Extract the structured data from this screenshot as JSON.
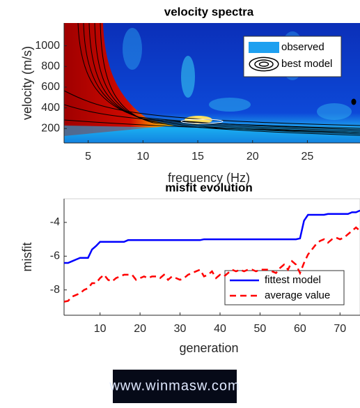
{
  "chart_data": [
    {
      "type": "heatmap",
      "title": "velocity spectra",
      "xlabel": "frequency (Hz)",
      "ylabel": "velocity (m/s)",
      "xlim": [
        2.8,
        29.8
      ],
      "xticks": [
        5,
        10,
        15,
        20,
        25
      ],
      "ylim": [
        60,
        1220
      ],
      "yticks": [
        200,
        400,
        600,
        800,
        1000
      ],
      "series": [
        {
          "name": "observed",
          "color": "#1ea0f0"
        },
        {
          "name": "best model",
          "color": "#000000"
        }
      ]
    },
    {
      "type": "line",
      "title": "misfit evolution",
      "xlabel": "generation",
      "ylabel": "misfit",
      "xlim": [
        1,
        75
      ],
      "xticks": [
        10,
        20,
        30,
        40,
        50,
        60,
        70
      ],
      "ylim": [
        -9.5,
        -2.6
      ],
      "yticks": [
        -8,
        -6,
        -4
      ],
      "x": [
        1,
        2,
        3,
        4,
        5,
        6,
        7,
        8,
        9,
        10,
        11,
        12,
        13,
        14,
        15,
        16,
        17,
        18,
        19,
        20,
        21,
        22,
        23,
        24,
        25,
        26,
        27,
        28,
        29,
        30,
        31,
        32,
        33,
        34,
        35,
        36,
        37,
        38,
        39,
        40,
        41,
        42,
        43,
        44,
        45,
        46,
        47,
        48,
        49,
        50,
        51,
        52,
        53,
        54,
        55,
        56,
        57,
        58,
        59,
        60,
        61,
        62,
        63,
        64,
        65,
        66,
        67,
        68,
        69,
        70,
        71,
        72,
        73,
        74,
        75
      ],
      "series": [
        {
          "name": "fittest model",
          "color": "#0000ff",
          "dash": false,
          "values": [
            -6.4,
            -6.4,
            -6.3,
            -6.2,
            -6.1,
            -6.1,
            -6.1,
            -5.6,
            -5.4,
            -5.15,
            -5.15,
            -5.15,
            -5.15,
            -5.15,
            -5.15,
            -5.15,
            -5.05,
            -5.05,
            -5.05,
            -5.05,
            -5.05,
            -5.05,
            -5.05,
            -5.05,
            -5.05,
            -5.05,
            -5.05,
            -5.05,
            -5.05,
            -5.05,
            -5.05,
            -5.05,
            -5.05,
            -5.05,
            -5.05,
            -5.0,
            -5.0,
            -5.0,
            -5.0,
            -5.0,
            -5.0,
            -5.0,
            -5.0,
            -5.0,
            -5.0,
            -5.0,
            -5.0,
            -5.0,
            -5.0,
            -5.0,
            -5.0,
            -5.0,
            -5.0,
            -5.0,
            -5.0,
            -5.0,
            -5.0,
            -5.0,
            -5.0,
            -4.95,
            -3.9,
            -3.55,
            -3.55,
            -3.55,
            -3.55,
            -3.55,
            -3.5,
            -3.5,
            -3.5,
            -3.5,
            -3.5,
            -3.5,
            -3.4,
            -3.4,
            -3.3
          ]
        },
        {
          "name": "average value",
          "color": "#ff0000",
          "dash": true,
          "values": [
            -8.7,
            -8.65,
            -8.4,
            -8.3,
            -8.2,
            -8.0,
            -7.9,
            -7.6,
            -7.6,
            -7.3,
            -7.1,
            -7.4,
            -7.5,
            -7.3,
            -7.2,
            -7.1,
            -7.1,
            -7.1,
            -7.4,
            -7.3,
            -7.2,
            -7.3,
            -7.2,
            -7.2,
            -7.3,
            -7.1,
            -7.4,
            -7.2,
            -7.3,
            -7.4,
            -7.3,
            -7.1,
            -7.0,
            -6.9,
            -6.8,
            -7.2,
            -7.1,
            -6.9,
            -7.3,
            -7.1,
            -7.2,
            -7.0,
            -6.8,
            -6.9,
            -6.8,
            -6.9,
            -6.8,
            -6.8,
            -6.9,
            -6.8,
            -6.8,
            -6.8,
            -6.9,
            -7.0,
            -6.7,
            -6.5,
            -6.8,
            -6.3,
            -6.5,
            -7.0,
            -6.4,
            -5.9,
            -5.6,
            -5.3,
            -5.1,
            -5.0,
            -5.2,
            -5.0,
            -4.9,
            -5.0,
            -4.9,
            -4.7,
            -4.5,
            -4.3,
            -4.5
          ]
        }
      ]
    }
  ],
  "footer": {
    "logo": "www.winmasw.com"
  }
}
